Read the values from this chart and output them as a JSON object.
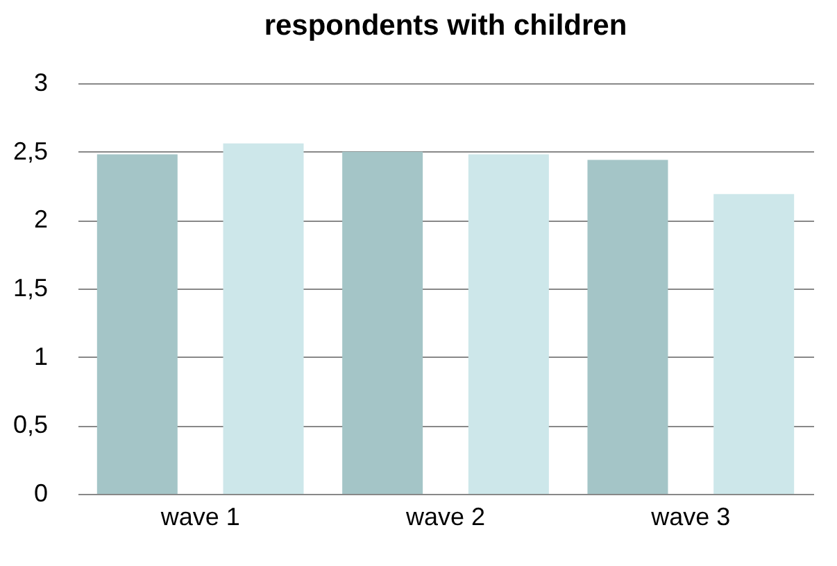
{
  "chart_data": {
    "type": "bar",
    "title": "respondents with children",
    "categories": [
      "wave 1",
      "wave 2",
      "wave 3"
    ],
    "series": [
      {
        "color": "#a4c5c7",
        "values": [
          2.48,
          2.5,
          2.44
        ]
      },
      {
        "color": "#cde7ea",
        "values": [
          2.56,
          2.48,
          2.19
        ]
      }
    ],
    "ylim": [
      0,
      3
    ],
    "yticks": [
      0,
      {
        "value": 0.5,
        "label": "0,5"
      },
      1,
      {
        "value": 1.5,
        "label": "1,5"
      },
      2,
      {
        "value": 2.5,
        "label": "2,5"
      },
      3
    ],
    "grid": "y",
    "legend": false
  }
}
